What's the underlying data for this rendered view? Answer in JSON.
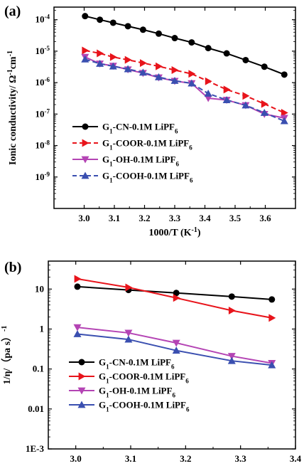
{
  "chart_data": [
    {
      "panel_label": "(a)",
      "type": "line",
      "xlabel": "1000/T (K",
      "xlabel_sup": "-1",
      "xlabel_suffix": ")",
      "ylabel": "Ionic conductivity/ Ω",
      "ylabel_unit": "cm",
      "ylabel_sup": "-1",
      "xlim": [
        2.9,
        3.7
      ],
      "ylim_log10": [
        -10,
        -3.6
      ],
      "y_scale": "log",
      "xticks": [
        {
          "v": 3.0,
          "label": "3.0"
        },
        {
          "v": 3.1,
          "label": "3.1"
        },
        {
          "v": 3.2,
          "label": "3.2"
        },
        {
          "v": 3.3,
          "label": "3.3"
        },
        {
          "v": 3.4,
          "label": "3.4"
        },
        {
          "v": 3.5,
          "label": "3.5"
        },
        {
          "v": 3.6,
          "label": "3.6"
        }
      ],
      "yticks": [
        {
          "exp": -4,
          "base": "10",
          "sup": "-4"
        },
        {
          "exp": -5,
          "base": "10",
          "sup": "-5"
        },
        {
          "exp": -6,
          "base": "10",
          "sup": "-6"
        },
        {
          "exp": -7,
          "base": "10",
          "sup": "-7"
        },
        {
          "exp": -8,
          "base": "10",
          "sup": "-8"
        },
        {
          "exp": -9,
          "base": "10",
          "sup": "-9"
        }
      ],
      "legend_position": "bottom-left",
      "series": [
        {
          "legend_text": "G",
          "legend_sub": "1",
          "legend_mid": "-CN-0.1M LiPF",
          "legend_sub2": "6",
          "color": "#000000",
          "marker": "circle",
          "dash": "solid",
          "x": [
            3.003,
            3.052,
            3.096,
            3.145,
            3.195,
            3.247,
            3.3,
            3.356,
            3.411,
            3.472,
            3.535,
            3.597,
            3.663
          ],
          "y": [
            0.00013,
            0.0001,
            8e-05,
            6.2e-05,
            4.8e-05,
            3.6e-05,
            2.6e-05,
            1.9e-05,
            1.25e-05,
            8.5e-06,
            5.2e-06,
            3.2e-06,
            1.8e-06
          ]
        },
        {
          "legend_text": "G",
          "legend_sub": "1",
          "legend_mid": "-COOR-0.1M LiPF",
          "legend_sub2": "6",
          "color": "#e8141b",
          "marker": "triangle-right",
          "dash": "dashed",
          "x": [
            3.003,
            3.052,
            3.096,
            3.145,
            3.195,
            3.247,
            3.3,
            3.356,
            3.411,
            3.472,
            3.535,
            3.597,
            3.663
          ],
          "y": [
            1.05e-05,
            8.5e-06,
            6.5e-06,
            5.3e-06,
            4.2e-06,
            3.3e-06,
            2.5e-06,
            1.9e-06,
            1.1e-06,
            6e-07,
            3.8e-07,
            2.1e-07,
            1.1e-07
          ]
        },
        {
          "legend_text": "G",
          "legend_sub": "1",
          "legend_mid": "-OH-0.1M LiPF",
          "legend_sub2": "6",
          "color": "#b444b4",
          "marker": "triangle-down",
          "dash": "solid",
          "x": [
            3.003,
            3.052,
            3.096,
            3.145,
            3.195,
            3.247,
            3.3,
            3.356,
            3.411,
            3.472,
            3.535,
            3.597,
            3.663
          ],
          "y": [
            6.5e-06,
            4e-06,
            3.4e-06,
            2.6e-06,
            2e-06,
            1.45e-06,
            1.12e-06,
            9.5e-07,
            3.2e-07,
            2.8e-07,
            1.9e-07,
            1e-07,
            7.5e-08
          ]
        },
        {
          "legend_text": "G",
          "legend_sub": "1",
          "legend_mid": "-COOH-0.1M LiPF",
          "legend_sub2": "6",
          "color": "#3a4fb0",
          "marker": "triangle-up",
          "dash": "dashed",
          "x": [
            3.003,
            3.052,
            3.096,
            3.145,
            3.195,
            3.247,
            3.3,
            3.356,
            3.411,
            3.472,
            3.535,
            3.597,
            3.663
          ],
          "y": [
            5.5e-06,
            4e-06,
            3.3e-06,
            2.7e-06,
            2.1e-06,
            1.5e-06,
            1.15e-06,
            9.5e-07,
            4.5e-07,
            2.8e-07,
            1.9e-07,
            1.1e-07,
            6e-08
          ]
        }
      ]
    },
    {
      "panel_label": "(b)",
      "type": "line",
      "xlabel": "1000/T (K",
      "xlabel_sup": "-1",
      "xlabel_suffix": ")",
      "ylabel": "1/η/（pa s）",
      "ylabel_sup": "-1",
      "xlim": [
        2.95,
        3.4
      ],
      "ylim_log10": [
        -3,
        1.7
      ],
      "y_scale": "log",
      "xticks": [
        {
          "v": 3.0,
          "label": "3.0"
        },
        {
          "v": 3.1,
          "label": "3.1"
        },
        {
          "v": 3.2,
          "label": "3.2"
        },
        {
          "v": 3.3,
          "label": "3.3"
        },
        {
          "v": 3.4,
          "label": "3.4"
        }
      ],
      "yticks": [
        {
          "exp": 1,
          "label": "10"
        },
        {
          "exp": 0,
          "label": "1"
        },
        {
          "exp": -1,
          "label": "0.1"
        },
        {
          "exp": -2,
          "label": "0.01"
        },
        {
          "exp": -3,
          "label": "1E-3"
        }
      ],
      "legend_position": "bottom-left",
      "series": [
        {
          "legend_text": "G",
          "legend_sub": "1",
          "legend_mid": "-CN-0.1M LiPF",
          "legend_sub2": "6",
          "color": "#000000",
          "marker": "circle",
          "dash": "solid",
          "x": [
            3.003,
            3.096,
            3.183,
            3.284,
            3.357
          ],
          "y": [
            11.5,
            9.5,
            8.0,
            6.5,
            5.5
          ]
        },
        {
          "legend_text": "G",
          "legend_sub": "1",
          "legend_mid": "-COOR-0.1M LiPF",
          "legend_sub2": "6",
          "color": "#e8141b",
          "marker": "triangle-right",
          "dash": "solid",
          "x": [
            3.003,
            3.096,
            3.183,
            3.284,
            3.357
          ],
          "y": [
            18.0,
            11.0,
            6.0,
            2.9,
            1.9
          ]
        },
        {
          "legend_text": "G",
          "legend_sub": "1",
          "legend_mid": "-OH-0.1M LiPF",
          "legend_sub2": "6",
          "color": "#b444b4",
          "marker": "triangle-down",
          "dash": "solid",
          "x": [
            3.003,
            3.096,
            3.183,
            3.284,
            3.357
          ],
          "y": [
            1.1,
            0.8,
            0.45,
            0.21,
            0.14
          ]
        },
        {
          "legend_text": "G",
          "legend_sub": "1",
          "legend_mid": "-COOH-0.1M LiPF",
          "legend_sub2": "6",
          "color": "#3a4fb0",
          "marker": "triangle-up",
          "dash": "solid",
          "x": [
            3.003,
            3.096,
            3.183,
            3.284,
            3.357
          ],
          "y": [
            0.75,
            0.55,
            0.29,
            0.16,
            0.125
          ]
        }
      ]
    }
  ]
}
